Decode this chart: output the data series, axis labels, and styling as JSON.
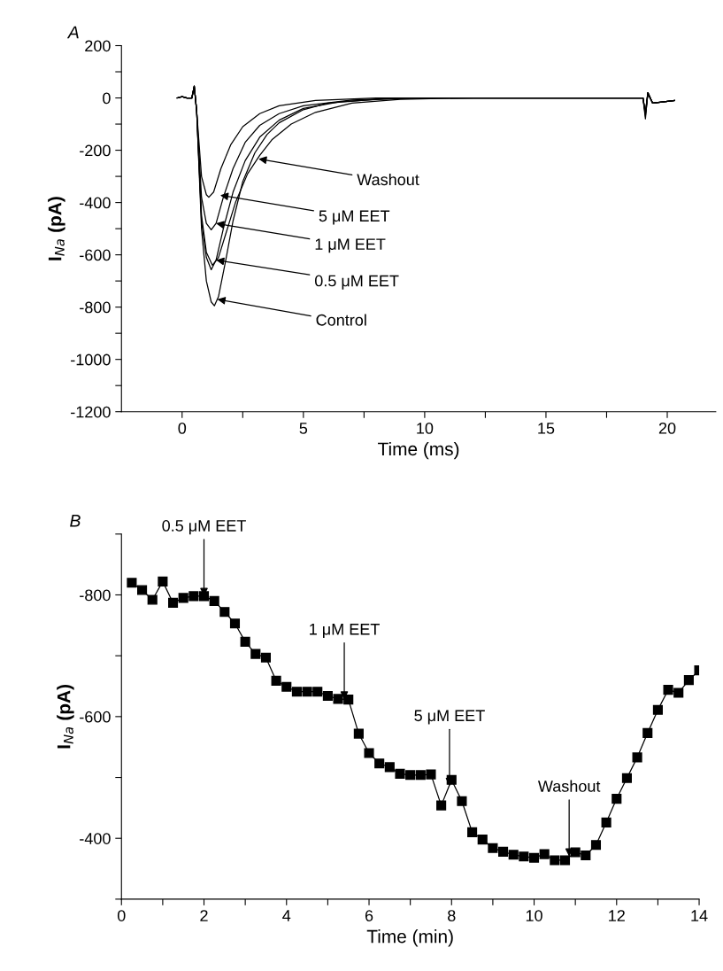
{
  "chart_data": [
    {
      "type": "line",
      "title": "A",
      "xlabel": "Time (ms)",
      "ylabel": "I$_{Na}$ (pA)",
      "xlim": [
        -2.5,
        22
      ],
      "xticks": [
        0,
        {
          "value": 2.5,
          "label": null
        },
        5,
        {
          "value": 7.5,
          "label": null
        },
        10,
        {
          "value": 12.5,
          "label": null
        },
        15,
        {
          "value": 17.5,
          "label": null
        },
        20
      ],
      "ylim": [
        -1200,
        200
      ],
      "yticks": [
        -1200,
        {
          "value": -1100,
          "label": null
        },
        -1000,
        {
          "value": -900,
          "label": null
        },
        -800,
        {
          "value": -700,
          "label": null
        },
        -600,
        {
          "value": -500,
          "label": null
        },
        -400,
        {
          "value": -300,
          "label": null
        },
        -200,
        {
          "value": -100,
          "label": null
        },
        0,
        {
          "value": 100,
          "label": null
        },
        200
      ],
      "marker": "none",
      "line_style": "solid",
      "grid": false,
      "legend": false,
      "series": [
        {
          "color": "#000000",
          "x": [
            -0.2,
            0.0,
            0.2,
            0.4,
            0.5,
            0.6,
            0.8,
            1.0,
            1.2,
            1.33,
            1.5,
            1.8,
            2.1,
            2.5,
            3.0,
            3.5,
            4.0,
            5.0,
            6.0,
            8.0,
            10.0,
            15.0,
            19.0,
            19.1,
            19.2,
            19.4,
            20.3
          ],
          "values": [
            0,
            5,
            0,
            0,
            45,
            -50,
            -500,
            -700,
            -780,
            -795,
            -760,
            -620,
            -470,
            -320,
            -210,
            -140,
            -95,
            -45,
            -20,
            -5,
            0,
            0,
            0,
            -60,
            20,
            -20,
            -10
          ]
        },
        {
          "color": "#000000",
          "x": [
            -0.2,
            0.0,
            0.2,
            0.4,
            0.5,
            0.6,
            0.8,
            1.0,
            1.25,
            1.5,
            1.8,
            2.2,
            2.7,
            3.2,
            3.7,
            4.5,
            5.5,
            7.0,
            9.0,
            12.0,
            15.0,
            19.0,
            19.1,
            19.2,
            19.4,
            20.3
          ],
          "values": [
            0,
            5,
            0,
            0,
            45,
            -50,
            -450,
            -590,
            -640,
            -610,
            -520,
            -400,
            -290,
            -220,
            -160,
            -100,
            -55,
            -20,
            -5,
            0,
            0,
            0,
            -70,
            15,
            -20,
            -10
          ]
        },
        {
          "color": "#000000",
          "x": [
            -0.2,
            0.0,
            0.2,
            0.4,
            0.5,
            0.6,
            0.8,
            1.0,
            1.2,
            1.4,
            1.7,
            2.1,
            2.6,
            3.2,
            4.0,
            5.0,
            6.5,
            9.0,
            15.0,
            19.0,
            19.1,
            19.2,
            19.4,
            20.3
          ],
          "values": [
            0,
            5,
            0,
            0,
            45,
            -50,
            -470,
            -610,
            -657,
            -620,
            -500,
            -360,
            -240,
            -150,
            -85,
            -40,
            -15,
            0,
            0,
            0,
            -60,
            20,
            -20,
            -10
          ]
        },
        {
          "color": "#000000",
          "x": [
            -0.2,
            0.0,
            0.2,
            0.4,
            0.5,
            0.6,
            0.8,
            1.0,
            1.2,
            1.4,
            1.7,
            2.1,
            2.6,
            3.2,
            4.0,
            5.0,
            7.0,
            9.0,
            15.0,
            19.0,
            19.1,
            19.2,
            19.4,
            20.3
          ],
          "values": [
            0,
            5,
            0,
            0,
            45,
            -50,
            -380,
            -480,
            -504,
            -480,
            -380,
            -270,
            -170,
            -105,
            -60,
            -30,
            -8,
            0,
            0,
            0,
            -55,
            20,
            -20,
            -10
          ]
        },
        {
          "color": "#000000",
          "x": [
            -0.2,
            0.0,
            0.2,
            0.4,
            0.5,
            0.6,
            0.8,
            1.0,
            1.1,
            1.3,
            1.6,
            2.0,
            2.5,
            3.2,
            4.0,
            5.5,
            8.0,
            15.0,
            19.0,
            19.1,
            19.2,
            19.4,
            20.3
          ],
          "values": [
            0,
            5,
            0,
            0,
            45,
            -50,
            -300,
            -370,
            -380,
            -360,
            -270,
            -180,
            -110,
            -60,
            -30,
            -10,
            0,
            0,
            0,
            -80,
            20,
            -20,
            -10
          ]
        }
      ],
      "annotations": [
        {
          "text": "Washout",
          "x": 3.15,
          "y": -233
        },
        {
          "text": "5 μM EET",
          "x": 1.57,
          "y": -372
        },
        {
          "text": "1 μM EET",
          "x": 1.4,
          "y": -480
        },
        {
          "text": "0.5 μM EET",
          "x": 1.4,
          "y": -620
        },
        {
          "text": "Control",
          "x": 1.45,
          "y": -770
        }
      ]
    },
    {
      "type": "line",
      "title": "B",
      "xlabel": "Time (min)",
      "ylabel": "I$_{Na}$ (pA)",
      "xlim": [
        0,
        14
      ],
      "xticks": [
        0,
        {
          "value": 1,
          "label": null
        },
        2,
        {
          "value": 3,
          "label": null
        },
        4,
        {
          "value": 5,
          "label": null
        },
        6,
        {
          "value": 7,
          "label": null
        },
        8,
        {
          "value": 9,
          "label": null
        },
        10,
        {
          "value": 11,
          "label": null
        },
        12,
        {
          "value": 13,
          "label": null
        },
        14
      ],
      "ylim": [
        -300,
        -900
      ],
      "yticks": [
        {
          "value": -300,
          "label": null
        },
        -400,
        {
          "value": -500,
          "label": null
        },
        -600,
        {
          "value": -700,
          "label": null
        },
        -800,
        {
          "value": -900,
          "label": null
        }
      ],
      "marker": "square",
      "line_style": "solid",
      "grid": false,
      "legend": false,
      "series": [
        {
          "color": "#000000",
          "x": [
            0.25,
            0.5,
            0.75,
            1.0,
            1.25,
            1.5,
            1.75,
            2.0,
            2.25,
            2.5,
            2.75,
            3.0,
            3.25,
            3.5,
            3.75,
            4.0,
            4.25,
            4.5,
            4.75,
            5.0,
            5.25,
            5.5,
            5.75,
            6.0,
            6.25,
            6.5,
            6.75,
            7.0,
            7.25,
            7.5,
            7.75,
            8.0,
            8.25,
            8.5,
            8.75,
            9.0,
            9.25,
            9.5,
            9.75,
            10.0,
            10.25,
            10.5,
            10.75,
            11.0,
            11.25,
            11.5,
            11.75,
            12.0,
            12.25,
            12.5,
            12.75,
            13.0,
            13.25,
            13.5,
            13.75,
            14.0
          ],
          "values": [
            -820,
            -808,
            -792,
            -822,
            -787,
            -795,
            -798,
            -798,
            -790,
            -772,
            -753,
            -723,
            -703,
            -697,
            -659,
            -649,
            -641,
            -641,
            -641,
            -634,
            -629,
            -628,
            -572,
            -540,
            -523,
            -517,
            -506,
            -504,
            -504,
            -505,
            -454,
            -496,
            -461,
            -410,
            -398,
            -384,
            -378,
            -373,
            -370,
            -368,
            -374,
            -364,
            -364,
            -377,
            -372,
            -389,
            -426,
            -465,
            -499,
            -533,
            -573,
            -611,
            -644,
            -639,
            -660,
            -676
          ]
        }
      ],
      "annotations": [
        {
          "text": "0.5 μM EET",
          "x": 2.0,
          "y": -798
        },
        {
          "text": "1 μM EET",
          "x": 5.4,
          "y": -628
        },
        {
          "text": "5 μM EET",
          "x": 7.95,
          "y": -486
        },
        {
          "text": "Washout",
          "x": 10.85,
          "y": -370
        }
      ]
    }
  ]
}
